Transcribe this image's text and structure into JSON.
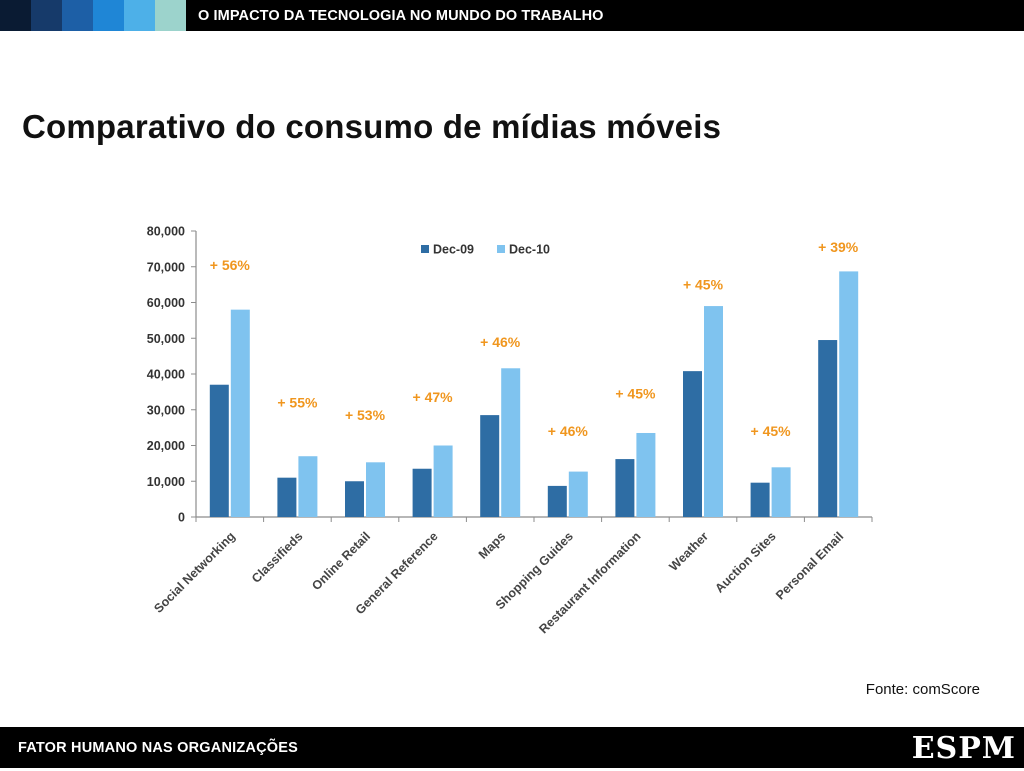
{
  "header": {
    "title": "O IMPACTO DA TECNOLOGIA NO MUNDO DO TRABALHO",
    "swatches": [
      "#0a1b33",
      "#163a6a",
      "#1d5fa6",
      "#1f86d6",
      "#4db0e8",
      "#9cd3cc"
    ]
  },
  "slide": {
    "title": "Comparativo do consumo de mídias móveis",
    "source": "Fonte: comScore"
  },
  "footer": {
    "left": "FATOR HUMANO NAS ORGANIZAÇÕES",
    "logo": "ESPM"
  },
  "chart_data": {
    "type": "bar",
    "title": "",
    "xlabel": "",
    "ylabel": "",
    "ylim": [
      0,
      80000
    ],
    "yticks": [
      0,
      10000,
      20000,
      30000,
      40000,
      50000,
      60000,
      70000,
      80000
    ],
    "ytick_labels": [
      "0",
      "10,000",
      "20,000",
      "30,000",
      "40,000",
      "50,000",
      "60,000",
      "70,000",
      "80,000"
    ],
    "categories": [
      "Social Networking",
      "Classifieds",
      "Online Retail",
      "General Reference",
      "Maps",
      "Shopping Guides",
      "Restaurant Information",
      "Weather",
      "Auction Sites",
      "Personal Email"
    ],
    "series": [
      {
        "name": "Dec-09",
        "color": "#2e6da4",
        "values": [
          37000,
          11000,
          10000,
          13500,
          28500,
          8700,
          16200,
          40800,
          9600,
          49500
        ]
      },
      {
        "name": "Dec-10",
        "color": "#7fc3ef",
        "values": [
          58000,
          17000,
          15300,
          20000,
          41600,
          12700,
          23500,
          59000,
          13900,
          68700
        ]
      }
    ],
    "growth_labels": [
      "+ 56%",
      "+ 55%",
      "+ 53%",
      "+ 47%",
      "+ 46%",
      "+ 46%",
      "+ 45%",
      "+ 45%",
      "+ 45%",
      "+ 39%"
    ],
    "growth_label_values": [
      70500,
      32000,
      28500,
      33500,
      49000,
      24000,
      34500,
      65000,
      24000,
      75500
    ],
    "growth_color": "#f0961e",
    "legend_position": "top-center"
  }
}
